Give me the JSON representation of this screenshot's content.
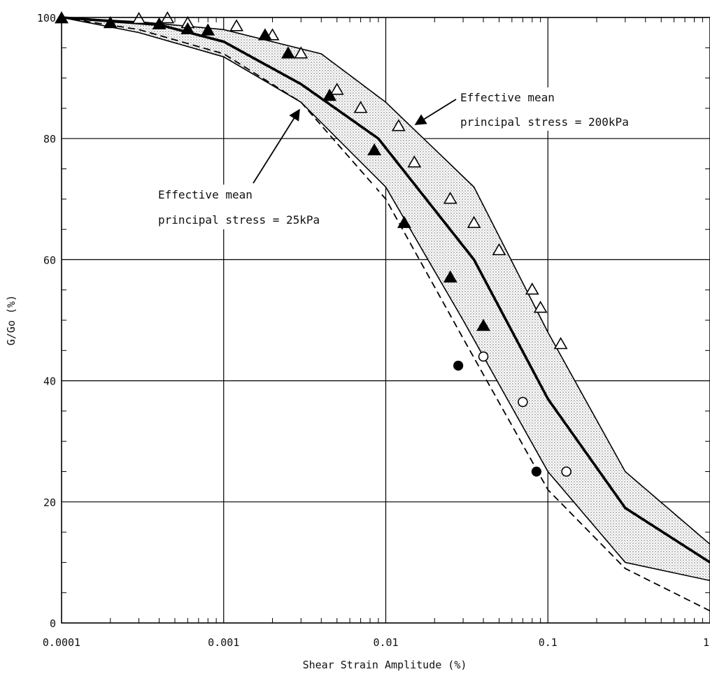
{
  "chart_data": {
    "type": "line",
    "title": "",
    "xlabel": "Shear Strain Amplitude (%)",
    "ylabel": "G/Go (%)",
    "xscale": "log",
    "xlim": [
      0.0001,
      1
    ],
    "ylim": [
      0,
      100
    ],
    "grid": true,
    "x_tick_labels": [
      "0.0001",
      "0.001",
      "0.01",
      "0.1",
      "1"
    ],
    "y_tick_labels": [
      "0",
      "20",
      "40",
      "60",
      "80",
      "100"
    ],
    "band": {
      "upper": {
        "x": [
          0.0001,
          0.0003,
          0.001,
          0.004,
          0.01,
          0.035,
          0.1,
          0.3,
          1
        ],
        "y": [
          100,
          99.3,
          98,
          94,
          86,
          72,
          48,
          25,
          13
        ]
      },
      "lower": {
        "x": [
          0.0001,
          0.0003,
          0.001,
          0.003,
          0.01,
          0.03,
          0.1,
          0.3,
          1
        ],
        "y": [
          100,
          97.5,
          93.5,
          86,
          72,
          50,
          25,
          10,
          7
        ]
      }
    },
    "series": [
      {
        "style": "thick-solid",
        "x": [
          0.0001,
          0.0004,
          0.001,
          0.003,
          0.009,
          0.035,
          0.1,
          0.3,
          1
        ],
        "y": [
          100,
          98.8,
          96,
          89,
          80,
          60,
          37,
          19,
          10
        ]
      },
      {
        "style": "dashed",
        "x": [
          0.0001,
          0.0003,
          0.001,
          0.003,
          0.01,
          0.03,
          0.1,
          0.3,
          1
        ],
        "y": [
          100,
          98,
          94,
          86,
          70,
          47,
          22,
          9,
          2
        ]
      }
    ],
    "markers": {
      "open_triangle": {
        "x": [
          0.0003,
          0.00045,
          0.0006,
          0.0012,
          0.002,
          0.003,
          0.005,
          0.007,
          0.012,
          0.015,
          0.025,
          0.035,
          0.05,
          0.08,
          0.09,
          0.12
        ],
        "y": [
          99.7,
          99.8,
          99,
          98.5,
          97,
          94,
          88,
          85,
          82,
          76,
          70,
          66,
          61.5,
          55,
          52,
          46
        ]
      },
      "filled_triangle": {
        "x": [
          0.0001,
          0.0002,
          0.0004,
          0.0006,
          0.0008,
          0.0018,
          0.0025,
          0.0045,
          0.0085,
          0.013,
          0.025,
          0.04
        ],
        "y": [
          99.8,
          99,
          98.8,
          98,
          97.8,
          97,
          94,
          87,
          78,
          66,
          57,
          49
        ]
      },
      "open_circle": {
        "x": [
          0.04,
          0.07,
          0.13
        ],
        "y": [
          44,
          36.5,
          25
        ]
      },
      "filled_circle": {
        "x": [
          0.028,
          0.085
        ],
        "y": [
          42.5,
          25
        ]
      }
    },
    "annotations": [
      {
        "lines": [
          "Effective mean",
          "principal stress = 200kPa"
        ]
      },
      {
        "lines": [
          "Effective mean",
          "principal stress = 25kPa"
        ]
      }
    ]
  }
}
